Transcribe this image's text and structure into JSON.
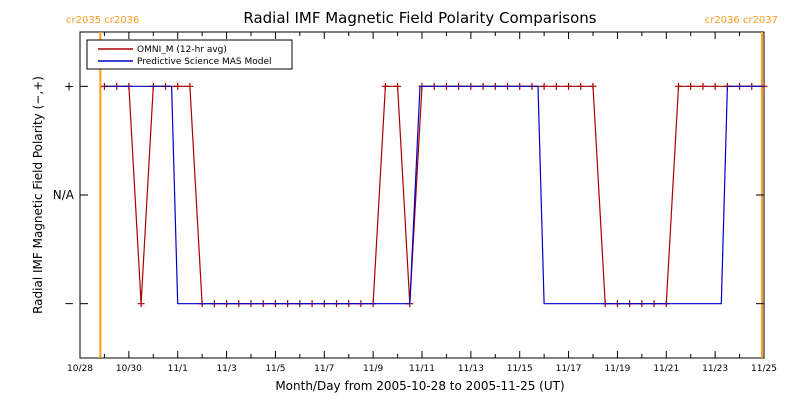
{
  "chart_data": {
    "type": "line",
    "title": "Radial IMF Magnetic Field Polarity Comparisons",
    "xlabel": "Month/Day from 2005-10-28 to 2005-11-25 (UT)",
    "ylabel": "Radial IMF Magnetic Field Polarity (−,+)",
    "xlim": [
      "2005-10-28",
      "2005-11-25"
    ],
    "ylim": [
      -1.5,
      1.5
    ],
    "x_ticks": [
      "10/28",
      "10/30",
      "11/1",
      "11/3",
      "11/5",
      "11/7",
      "11/9",
      "11/11",
      "11/13",
      "11/15",
      "11/17",
      "11/19",
      "11/21",
      "11/23",
      "11/25"
    ],
    "y_ticks": [
      {
        "value": 1,
        "label": "+"
      },
      {
        "value": 0,
        "label": "N/A"
      },
      {
        "value": -1,
        "label": "−"
      }
    ],
    "grid": false,
    "legend_position": "top-left",
    "carrington_markers": [
      {
        "date": "2005-10-28T20:00",
        "label": "cr2035 cr2036",
        "side": "left"
      },
      {
        "date": "2005-11-24T22:00",
        "label": "cr2036 cr2037",
        "side": "right"
      }
    ],
    "series": [
      {
        "name": "OMNI_M (12-hr avg)",
        "color": "#aa0000",
        "markers": true,
        "points": [
          [
            "2005-10-29T00:00",
            1
          ],
          [
            "2005-10-29T12:00",
            1
          ],
          [
            "2005-10-30T00:00",
            1
          ],
          [
            "2005-10-30T12:00",
            -1
          ],
          [
            "2005-10-31T00:00",
            1
          ],
          [
            "2005-10-31T12:00",
            1
          ],
          [
            "2005-11-01T00:00",
            1
          ],
          [
            "2005-11-01T12:00",
            1
          ],
          [
            "2005-11-02T00:00",
            -1
          ],
          [
            "2005-11-02T12:00",
            -1
          ],
          [
            "2005-11-03T00:00",
            -1
          ],
          [
            "2005-11-03T12:00",
            -1
          ],
          [
            "2005-11-04T00:00",
            -1
          ],
          [
            "2005-11-04T12:00",
            -1
          ],
          [
            "2005-11-05T00:00",
            -1
          ],
          [
            "2005-11-05T12:00",
            -1
          ],
          [
            "2005-11-06T00:00",
            -1
          ],
          [
            "2005-11-06T12:00",
            -1
          ],
          [
            "2005-11-07T00:00",
            -1
          ],
          [
            "2005-11-07T12:00",
            -1
          ],
          [
            "2005-11-08T00:00",
            -1
          ],
          [
            "2005-11-08T12:00",
            -1
          ],
          [
            "2005-11-09T00:00",
            -1
          ],
          [
            "2005-11-09T12:00",
            1
          ],
          [
            "2005-11-10T00:00",
            1
          ],
          [
            "2005-11-10T12:00",
            -1
          ],
          [
            "2005-11-11T00:00",
            1
          ],
          [
            "2005-11-11T12:00",
            1
          ],
          [
            "2005-11-12T00:00",
            1
          ],
          [
            "2005-11-12T12:00",
            1
          ],
          [
            "2005-11-13T00:00",
            1
          ],
          [
            "2005-11-13T12:00",
            1
          ],
          [
            "2005-11-14T00:00",
            1
          ],
          [
            "2005-11-14T12:00",
            1
          ],
          [
            "2005-11-15T00:00",
            1
          ],
          [
            "2005-11-15T12:00",
            1
          ],
          [
            "2005-11-16T00:00",
            1
          ],
          [
            "2005-11-16T12:00",
            1
          ],
          [
            "2005-11-17T00:00",
            1
          ],
          [
            "2005-11-17T12:00",
            1
          ],
          [
            "2005-11-18T00:00",
            1
          ],
          [
            "2005-11-18T12:00",
            -1
          ],
          [
            "2005-11-19T00:00",
            -1
          ],
          [
            "2005-11-19T12:00",
            -1
          ],
          [
            "2005-11-20T00:00",
            -1
          ],
          [
            "2005-11-20T12:00",
            -1
          ],
          [
            "2005-11-21T00:00",
            -1
          ],
          [
            "2005-11-21T12:00",
            1
          ],
          [
            "2005-11-22T00:00",
            1
          ],
          [
            "2005-11-22T12:00",
            1
          ],
          [
            "2005-11-23T00:00",
            1
          ],
          [
            "2005-11-23T12:00",
            1
          ],
          [
            "2005-11-24T00:00",
            1
          ],
          [
            "2005-11-24T12:00",
            1
          ],
          [
            "2005-11-25T00:00",
            1
          ]
        ]
      },
      {
        "name": "Predictive Science MAS Model",
        "color": "#0000cc",
        "markers": false,
        "points": [
          [
            "2005-10-29T00:00",
            1
          ],
          [
            "2005-10-31T18:00",
            1
          ],
          [
            "2005-11-01T00:00",
            -1
          ],
          [
            "2005-11-10T12:00",
            -1
          ],
          [
            "2005-11-10T22:00",
            1
          ],
          [
            "2005-11-15T18:00",
            1
          ],
          [
            "2005-11-16T00:00",
            -1
          ],
          [
            "2005-11-23T06:00",
            -1
          ],
          [
            "2005-11-23T12:00",
            1
          ],
          [
            "2005-11-25T00:00",
            1
          ]
        ]
      }
    ]
  }
}
